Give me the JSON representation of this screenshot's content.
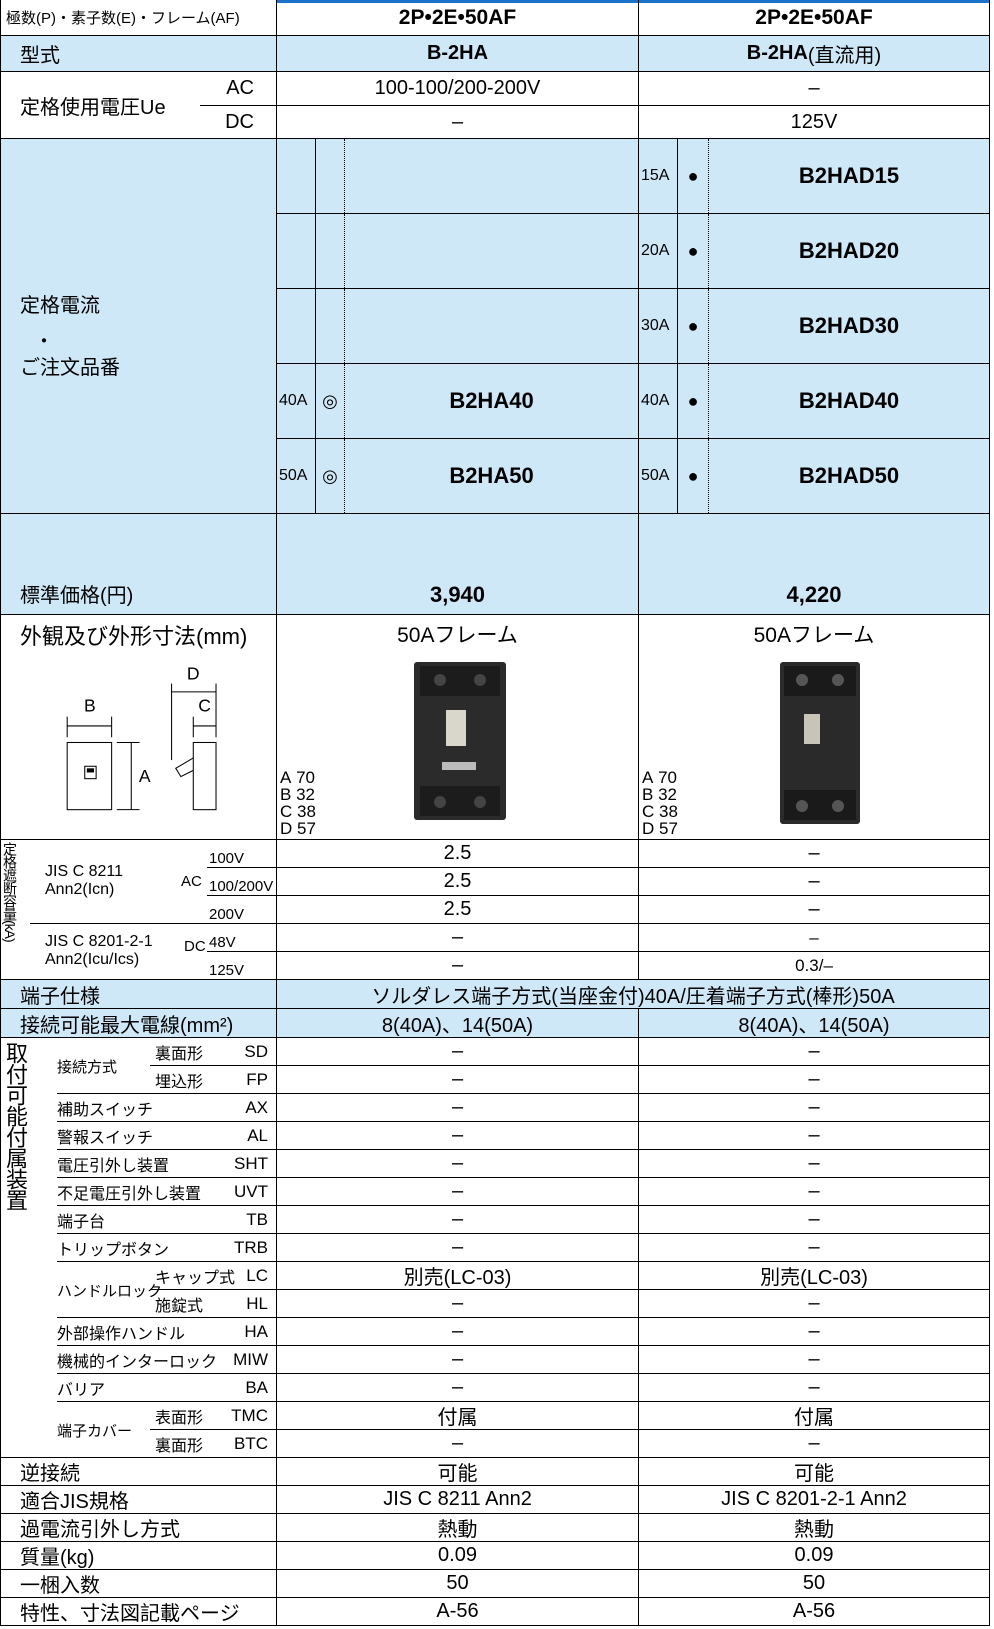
{
  "header": {
    "label": "極数(P)・素子数(E)・フレーム(AF)",
    "columns": [
      "2P•2E•50AF",
      "2P•2E•50AF"
    ]
  },
  "model": {
    "label": "型式",
    "columns": [
      "B-2HA",
      "B-2HA"
    ],
    "note": "(直流用)"
  },
  "voltage": {
    "label": "定格使用電圧Ue",
    "rows": [
      {
        "type": "AC",
        "values": [
          "100-100/200-200V",
          "–"
        ]
      },
      {
        "type": "DC",
        "values": [
          "–",
          "125V"
        ]
      }
    ]
  },
  "current": {
    "label": [
      "定格電流",
      "・",
      "ご注文品番"
    ],
    "rows": [
      {
        "col2": {
          "amp": "15A",
          "mark": "●",
          "code": "B2HAD15"
        }
      },
      {
        "col2": {
          "amp": "20A",
          "mark": "●",
          "code": "B2HAD20"
        }
      },
      {
        "col2": {
          "amp": "30A",
          "mark": "●",
          "code": "B2HAD30"
        }
      },
      {
        "col1": {
          "amp": "40A",
          "mark": "◎",
          "code": "B2HA40"
        },
        "col2": {
          "amp": "40A",
          "mark": "●",
          "code": "B2HAD40"
        }
      },
      {
        "col1": {
          "amp": "50A",
          "mark": "◎",
          "code": "B2HA50"
        },
        "col2": {
          "amp": "50A",
          "mark": "●",
          "code": "B2HAD50"
        }
      }
    ]
  },
  "price": {
    "label": "標準価格(円)",
    "values": [
      "3,940",
      "4,220"
    ]
  },
  "appearance": {
    "label": "外観及び外形寸法(mm)",
    "diagram": [
      "B",
      "D",
      "C",
      "A"
    ],
    "columns": [
      {
        "title": "50Aフレーム",
        "dims": [
          [
            "A",
            "70"
          ],
          [
            "B",
            "32"
          ],
          [
            "C",
            "38"
          ],
          [
            "D",
            "57"
          ]
        ]
      },
      {
        "title": "50Aフレーム",
        "dims": [
          [
            "A",
            "70"
          ],
          [
            "B",
            "32"
          ],
          [
            "C",
            "38"
          ],
          [
            "D",
            "57"
          ]
        ]
      }
    ]
  },
  "breaking": {
    "label": "定格遮断容量(kA)",
    "groups": [
      {
        "standard": [
          "JIS C 8211",
          "Ann2(Icn)"
        ],
        "current": "AC",
        "rows": [
          {
            "voltage": "100V",
            "values": [
              "2.5",
              "–"
            ]
          },
          {
            "voltage": "100/200V",
            "values": [
              "2.5",
              "–"
            ]
          },
          {
            "voltage": "200V",
            "values": [
              "2.5",
              "–"
            ]
          }
        ]
      },
      {
        "standard": [
          "JIS C 8201-2-1",
          "Ann2(Icu/Ics)"
        ],
        "current": "DC",
        "rows": [
          {
            "voltage": "48V",
            "values": [
              "–",
              "–"
            ]
          },
          {
            "voltage": "125V",
            "values": [
              "–",
              "0.3/–"
            ]
          }
        ]
      }
    ]
  },
  "terminal": {
    "label": "端子仕様",
    "value": "ソルダレス端子方式(当座金付)40A/圧着端子方式(棒形)50A"
  },
  "wire": {
    "label": "接続可能最大電線(mm²)",
    "values": [
      "8(40A)、14(50A)",
      "8(40A)、14(50A)"
    ]
  },
  "accessories": {
    "label": "取付可能付属装置",
    "items": [
      {
        "label": "接続方式",
        "rows": [
          {
            "name": "裏面形",
            "code": "SD",
            "values": [
              "–",
              "–"
            ]
          },
          {
            "name": "埋込形",
            "code": "FP",
            "values": [
              "–",
              "–"
            ]
          }
        ]
      },
      {
        "name": "補助スイッチ",
        "code": "AX",
        "values": [
          "–",
          "–"
        ]
      },
      {
        "name": "警報スイッチ",
        "code": "AL",
        "values": [
          "–",
          "–"
        ]
      },
      {
        "name": "電圧引外し装置",
        "code": "SHT",
        "values": [
          "–",
          "–"
        ]
      },
      {
        "name": "不足電圧引外し装置",
        "code": "UVT",
        "values": [
          "–",
          "–"
        ]
      },
      {
        "name": "端子台",
        "code": "TB",
        "values": [
          "–",
          "–"
        ]
      },
      {
        "name": "トリップボタン",
        "code": "TRB",
        "values": [
          "–",
          "–"
        ]
      },
      {
        "label": "ハンドルロック",
        "rows": [
          {
            "name": "キャップ式",
            "code": "LC",
            "values": [
              "別売(LC-03)",
              "別売(LC-03)"
            ]
          },
          {
            "name": "施錠式",
            "code": "HL",
            "values": [
              "–",
              "–"
            ]
          }
        ]
      },
      {
        "name": "外部操作ハンドル",
        "code": "HA",
        "values": [
          "–",
          "–"
        ]
      },
      {
        "name": "機械的インターロック",
        "code": "MIW",
        "values": [
          "–",
          "–"
        ]
      },
      {
        "name": "バリア",
        "code": "BA",
        "values": [
          "–",
          "–"
        ]
      },
      {
        "label": "端子カバー",
        "rows": [
          {
            "name": "表面形",
            "code": "TMC",
            "values": [
              "付属",
              "付属"
            ]
          },
          {
            "name": "裏面形",
            "code": "BTC",
            "values": [
              "–",
              "–"
            ]
          }
        ]
      }
    ]
  },
  "specs": [
    {
      "label": "逆接続",
      "values": [
        "可能",
        "可能"
      ]
    },
    {
      "label": "適合JIS規格",
      "values": [
        "JIS C 8211 Ann2",
        "JIS C 8201-2-1 Ann2"
      ]
    },
    {
      "label": "過電流引外し方式",
      "values": [
        "熱動",
        "熱動"
      ]
    },
    {
      "label": "質量(kg)",
      "values": [
        "0.09",
        "0.09"
      ]
    },
    {
      "label": "一梱入数",
      "values": [
        "50",
        "50"
      ]
    },
    {
      "label": "特性、寸法図記載ページ",
      "values": [
        "A-56",
        "A-56"
      ]
    }
  ]
}
